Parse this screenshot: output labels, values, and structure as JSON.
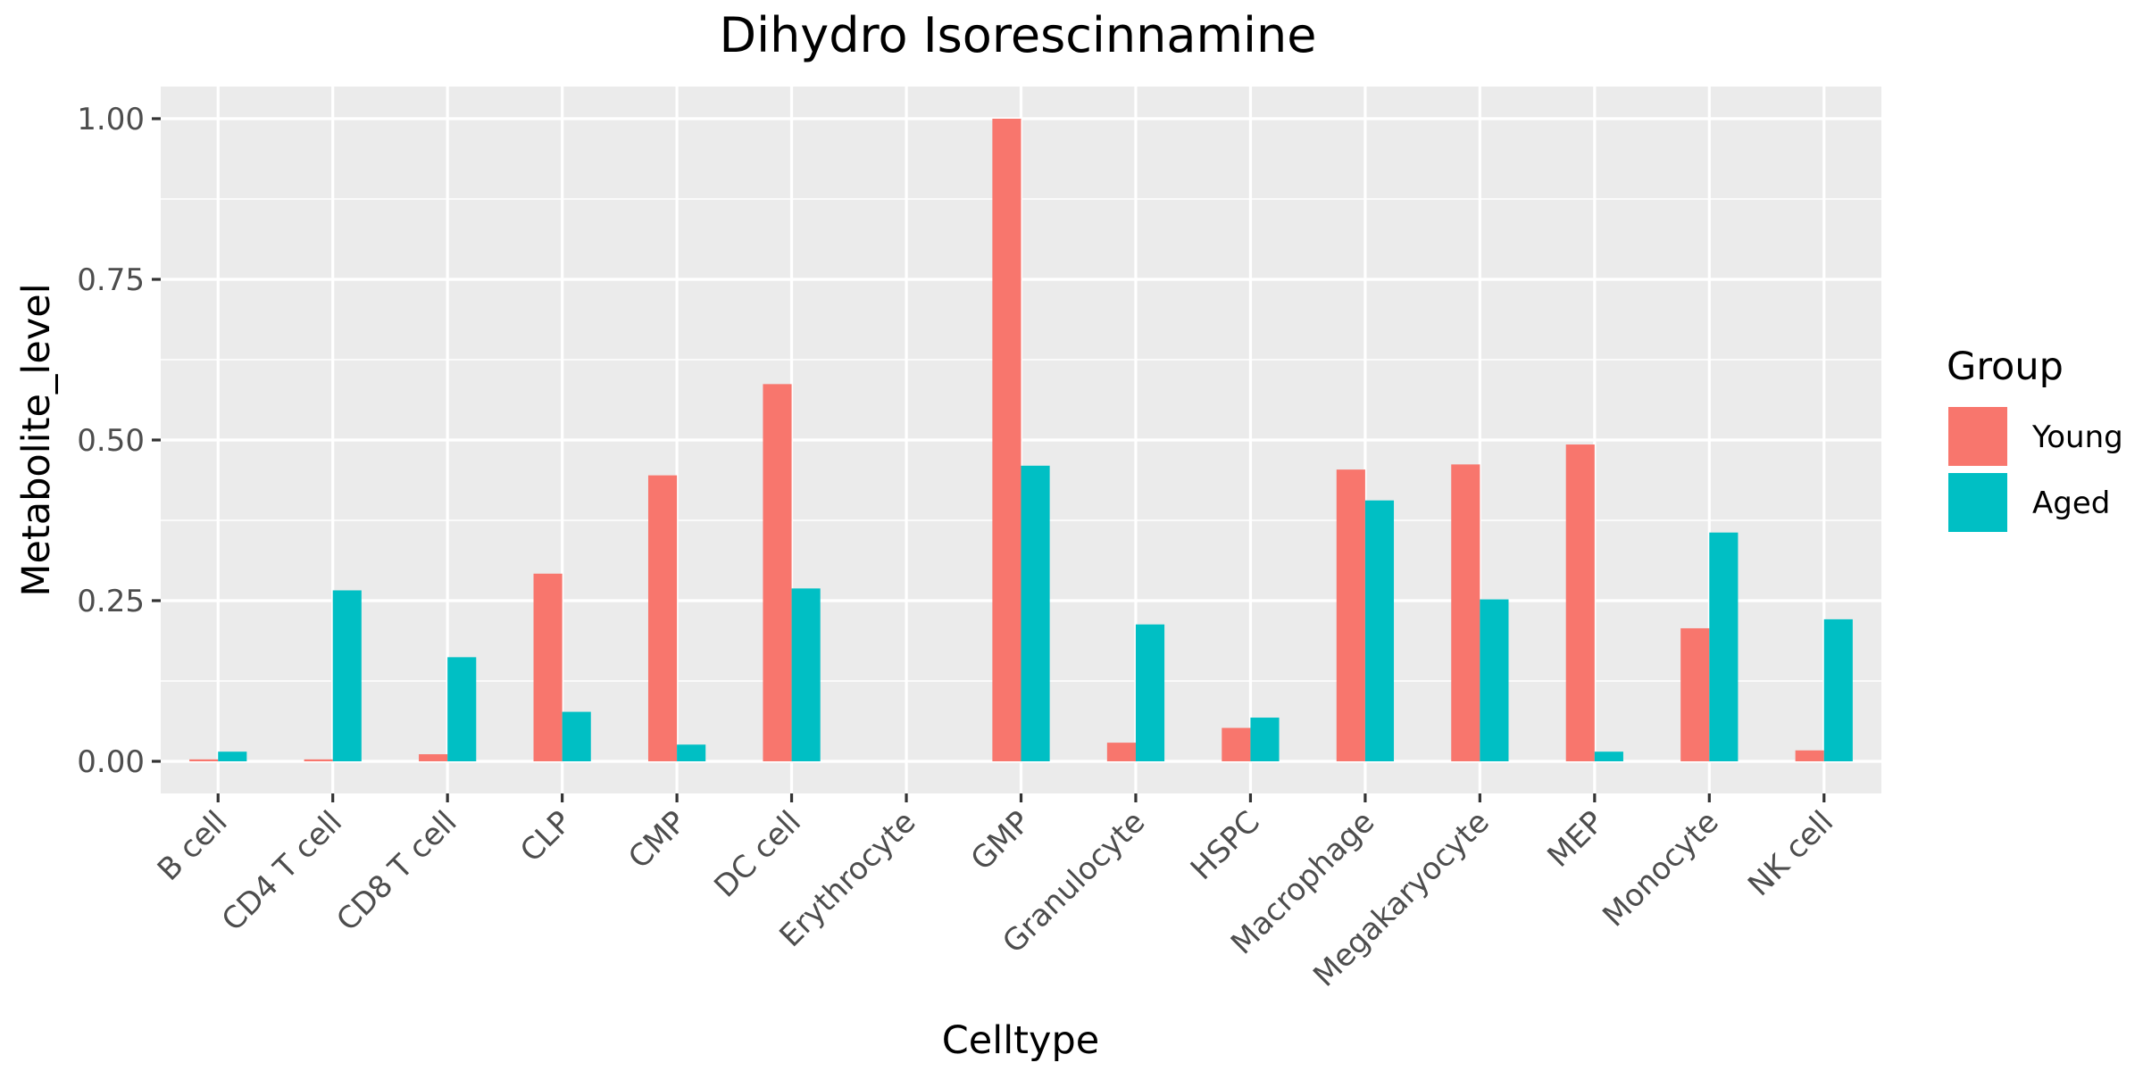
{
  "chart_data": {
    "type": "bar",
    "title": "Dihydro Isorescinnamine",
    "xlabel": "Celltype",
    "ylabel": "Metabolite_level",
    "ylim": [
      -0.05,
      1.05
    ],
    "yticks": [
      0.0,
      0.25,
      0.5,
      0.75,
      1.0
    ],
    "ytick_labels": [
      "0.00",
      "0.25",
      "0.50",
      "0.75",
      "1.00"
    ],
    "categories": [
      "B cell",
      "CD4 T cell",
      "CD8 T cell",
      "CLP",
      "CMP",
      "DC cell",
      "Erythrocyte",
      "GMP",
      "Granulocyte",
      "HSPC",
      "Macrophage",
      "Megakaryocyte",
      "MEP",
      "Monocyte",
      "NK cell"
    ],
    "series": [
      {
        "name": "Young",
        "color": "#F8766D",
        "values": [
          0.003,
          0.003,
          0.011,
          0.292,
          0.445,
          0.587,
          0.0,
          1.0,
          0.029,
          0.052,
          0.454,
          0.462,
          0.493,
          0.207,
          0.017
        ]
      },
      {
        "name": "Aged",
        "color": "#00BFC4",
        "values": [
          0.015,
          0.266,
          0.162,
          0.077,
          0.026,
          0.269,
          0.0,
          0.46,
          0.213,
          0.068,
          0.406,
          0.252,
          0.015,
          0.356,
          0.221
        ]
      }
    ],
    "legend": {
      "title": "Group",
      "position": "right"
    },
    "grid": true,
    "panel_color": "#EBEBEB",
    "grid_color": "#FFFFFF"
  }
}
